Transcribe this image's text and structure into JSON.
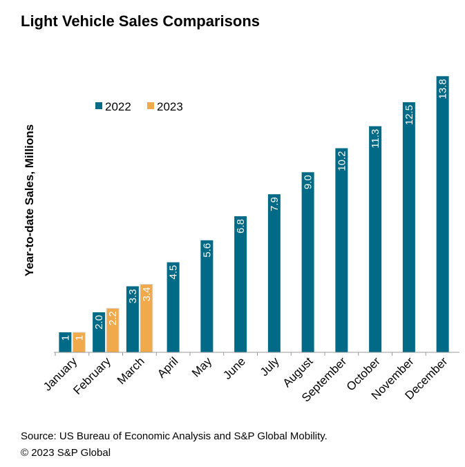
{
  "title": "Light Vehicle Sales Comparisons",
  "source": "Source: US Bureau of Economic Analysis and S&P Global Mobility.",
  "copyright": "© 2023 S&P Global",
  "chart_data": {
    "type": "bar",
    "ylabel": "Year-to-date Sales, Millions",
    "xlabel": "",
    "categories": [
      "January",
      "February",
      "March",
      "April",
      "May",
      "June",
      "July",
      "August",
      "September",
      "October",
      "November",
      "December"
    ],
    "ylim": [
      0,
      14.5
    ],
    "grid": false,
    "legend_position": "top-left",
    "series": [
      {
        "name": "2022",
        "color": "#006a87",
        "values": [
          1,
          2.0,
          3.3,
          4.5,
          5.6,
          6.8,
          7.9,
          9.0,
          10.2,
          11.3,
          12.5,
          13.8
        ],
        "labels": [
          "1",
          "2.0",
          "3.3",
          "4.5",
          "5.6",
          "6.8",
          "7.9",
          "9.0",
          "10.2",
          "11.3",
          "12.5",
          "13.8"
        ]
      },
      {
        "name": "2023",
        "color": "#f0a94b",
        "values": [
          1,
          2.2,
          3.4,
          null,
          null,
          null,
          null,
          null,
          null,
          null,
          null,
          null
        ],
        "labels": [
          "1",
          "2.2",
          "3.4",
          "",
          "",
          "",
          "",
          "",
          "",
          "",
          "",
          ""
        ]
      }
    ]
  }
}
